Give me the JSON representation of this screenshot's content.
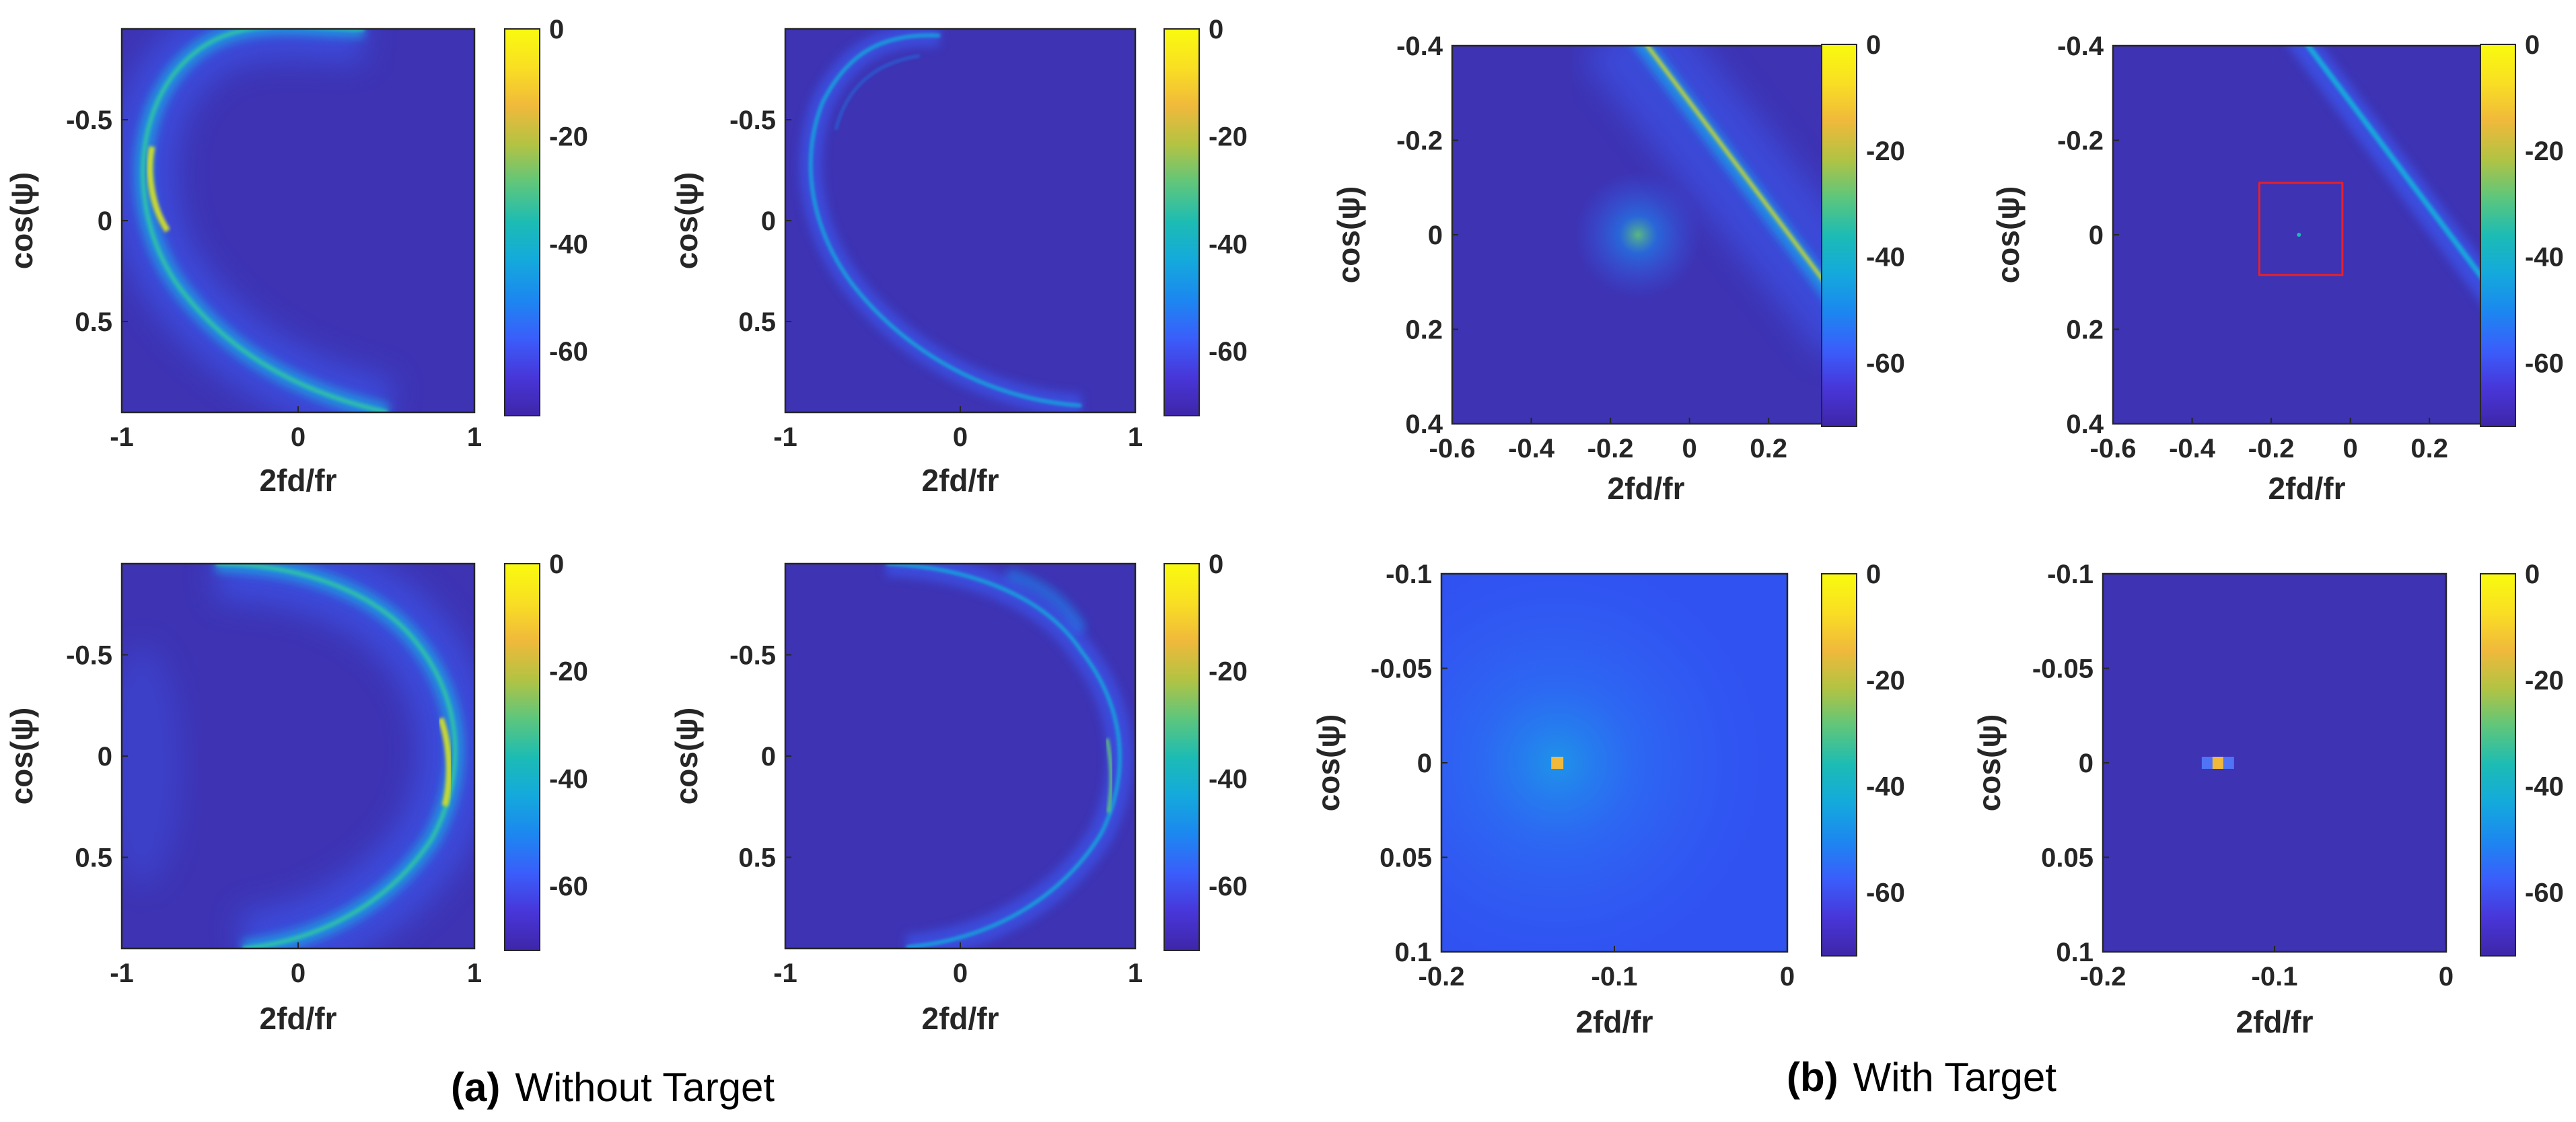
{
  "figure": {
    "captions": [
      {
        "letter": "(a)",
        "text": "Without Target"
      },
      {
        "letter": "(b)",
        "text": "With Target"
      }
    ]
  },
  "colors": {
    "background": "#3d33b3",
    "colormap": [
      "#3e26a8",
      "#4836d9",
      "#3a5efb",
      "#1c87f0",
      "#14a9dc",
      "#1cbcb4",
      "#5ec67c",
      "#b2c343",
      "#f0b93b",
      "#f9df23",
      "#f9fb0e"
    ],
    "marker": "#e8202a"
  },
  "chart_data": [
    {
      "id": "a1",
      "type": "heatmap",
      "xlabel": "2fd/fr",
      "ylabel": "cos(ψ)",
      "xlim": [
        -1,
        1
      ],
      "ylim": [
        -0.95,
        0.95
      ],
      "y_reversed": true,
      "xticks": [
        "-1",
        "0",
        "1"
      ],
      "yticks": [
        "-0.5",
        "0",
        "0.5"
      ],
      "colorbar": {
        "ticks": [
          "0",
          "-20",
          "-40",
          "-60"
        ],
        "range": [
          -72,
          0
        ]
      },
      "feature": "Bright clutter ridge arcing left from (0.3,-0.95) through (-0.92,0) to (0.5,0.95), peak near (-0.8,-0.15)"
    },
    {
      "id": "a2",
      "type": "heatmap",
      "xlabel": "2fd/fr",
      "ylabel": "cos(ψ)",
      "xlim": [
        -1,
        1
      ],
      "ylim": [
        -0.95,
        0.95
      ],
      "y_reversed": true,
      "xticks": [
        "-1",
        "0",
        "1"
      ],
      "yticks": [
        "-0.5",
        "0",
        "0.5"
      ],
      "colorbar": {
        "ticks": [
          "0",
          "-20",
          "-40",
          "-60"
        ],
        "range": [
          -72,
          0
        ]
      },
      "feature": "Thin clutter ridge arcing left, lower intensity"
    },
    {
      "id": "b1",
      "type": "heatmap",
      "xlabel": "2fd/fr",
      "ylabel": "cos(ψ)",
      "xlim": [
        -0.6,
        0.38
      ],
      "ylim": [
        -0.4,
        0.4
      ],
      "y_reversed": true,
      "xticks": [
        "-0.6",
        "-0.4",
        "-0.2",
        "0",
        "0.2"
      ],
      "yticks": [
        "-0.4",
        "-0.2",
        "0",
        "0.2",
        "0.4"
      ],
      "colorbar": {
        "ticks": [
          "0",
          "-20",
          "-40",
          "-60"
        ],
        "range": [
          -72,
          0
        ]
      },
      "target": [
        -0.13,
        0
      ],
      "feature": "Diagonal clutter line from (-0.1,-0.4) to (0.38,0.13); target at (-0.13,0)"
    },
    {
      "id": "b2",
      "type": "heatmap",
      "xlabel": "2fd/fr",
      "ylabel": "cos(ψ)",
      "xlim": [
        -0.6,
        0.38
      ],
      "ylim": [
        -0.4,
        0.4
      ],
      "y_reversed": true,
      "xticks": [
        "-0.6",
        "-0.4",
        "-0.2",
        "0",
        "0.2"
      ],
      "yticks": [
        "-0.4",
        "-0.2",
        "0",
        "0.2",
        "0.4"
      ],
      "colorbar": {
        "ticks": [
          "0",
          "-20",
          "-40",
          "-60"
        ],
        "range": [
          -72,
          0
        ]
      },
      "target": [
        -0.13,
        0
      ],
      "highlight_box": {
        "x": [
          -0.23,
          -0.02
        ],
        "y": [
          -0.11,
          0.085
        ]
      },
      "feature": "Narrow diagonal clutter line; faint target inside red box"
    },
    {
      "id": "a3",
      "type": "heatmap",
      "xlabel": "2fd/fr",
      "ylabel": "cos(ψ)",
      "xlim": [
        -1,
        1
      ],
      "ylim": [
        -0.95,
        0.95
      ],
      "y_reversed": true,
      "xticks": [
        "-1",
        "0",
        "1"
      ],
      "yticks": [
        "-0.5",
        "0",
        "0.5"
      ],
      "colorbar": {
        "ticks": [
          "0",
          "-20",
          "-40",
          "-60"
        ],
        "range": [
          -72,
          0
        ]
      },
      "feature": "Bright clutter ridge arcing right, peak near (0.88,0.1)"
    },
    {
      "id": "a4",
      "type": "heatmap",
      "xlabel": "2fd/fr",
      "ylabel": "cos(ψ)",
      "xlim": [
        -1,
        1
      ],
      "ylim": [
        -0.95,
        0.95
      ],
      "y_reversed": true,
      "xticks": [
        "-1",
        "0",
        "1"
      ],
      "yticks": [
        "-0.5",
        "0",
        "0.5"
      ],
      "colorbar": {
        "ticks": [
          "0",
          "-20",
          "-40",
          "-60"
        ],
        "range": [
          -72,
          0
        ]
      },
      "feature": "Thin clutter ridge arcing right"
    },
    {
      "id": "b3",
      "type": "heatmap",
      "xlabel": "2fd/fr",
      "ylabel": "cos(ψ)",
      "xlim": [
        -0.2,
        0
      ],
      "ylim": [
        -0.1,
        0.1
      ],
      "y_reversed": true,
      "xticks": [
        "-0.2",
        "-0.1",
        "0"
      ],
      "yticks": [
        "-0.1",
        "-0.05",
        "0",
        "0.05",
        "0.1"
      ],
      "colorbar": {
        "ticks": [
          "0",
          "-20",
          "-40",
          "-60"
        ],
        "range": [
          -72,
          0
        ]
      },
      "target": [
        -0.133,
        0
      ],
      "feature": "Zoomed target with broad glow"
    },
    {
      "id": "b4",
      "type": "heatmap",
      "xlabel": "2fd/fr",
      "ylabel": "cos(ψ)",
      "xlim": [
        -0.2,
        0
      ],
      "ylim": [
        -0.1,
        0.1
      ],
      "y_reversed": true,
      "xticks": [
        "-0.2",
        "-0.1",
        "0"
      ],
      "yticks": [
        "-0.1",
        "-0.05",
        "0",
        "0.05",
        "0.1"
      ],
      "colorbar": {
        "ticks": [
          "0",
          "-20",
          "-40",
          "-60"
        ],
        "range": [
          -72,
          0
        ]
      },
      "target": [
        -0.133,
        0
      ],
      "feature": "Zoomed target, sharp peak only"
    }
  ]
}
